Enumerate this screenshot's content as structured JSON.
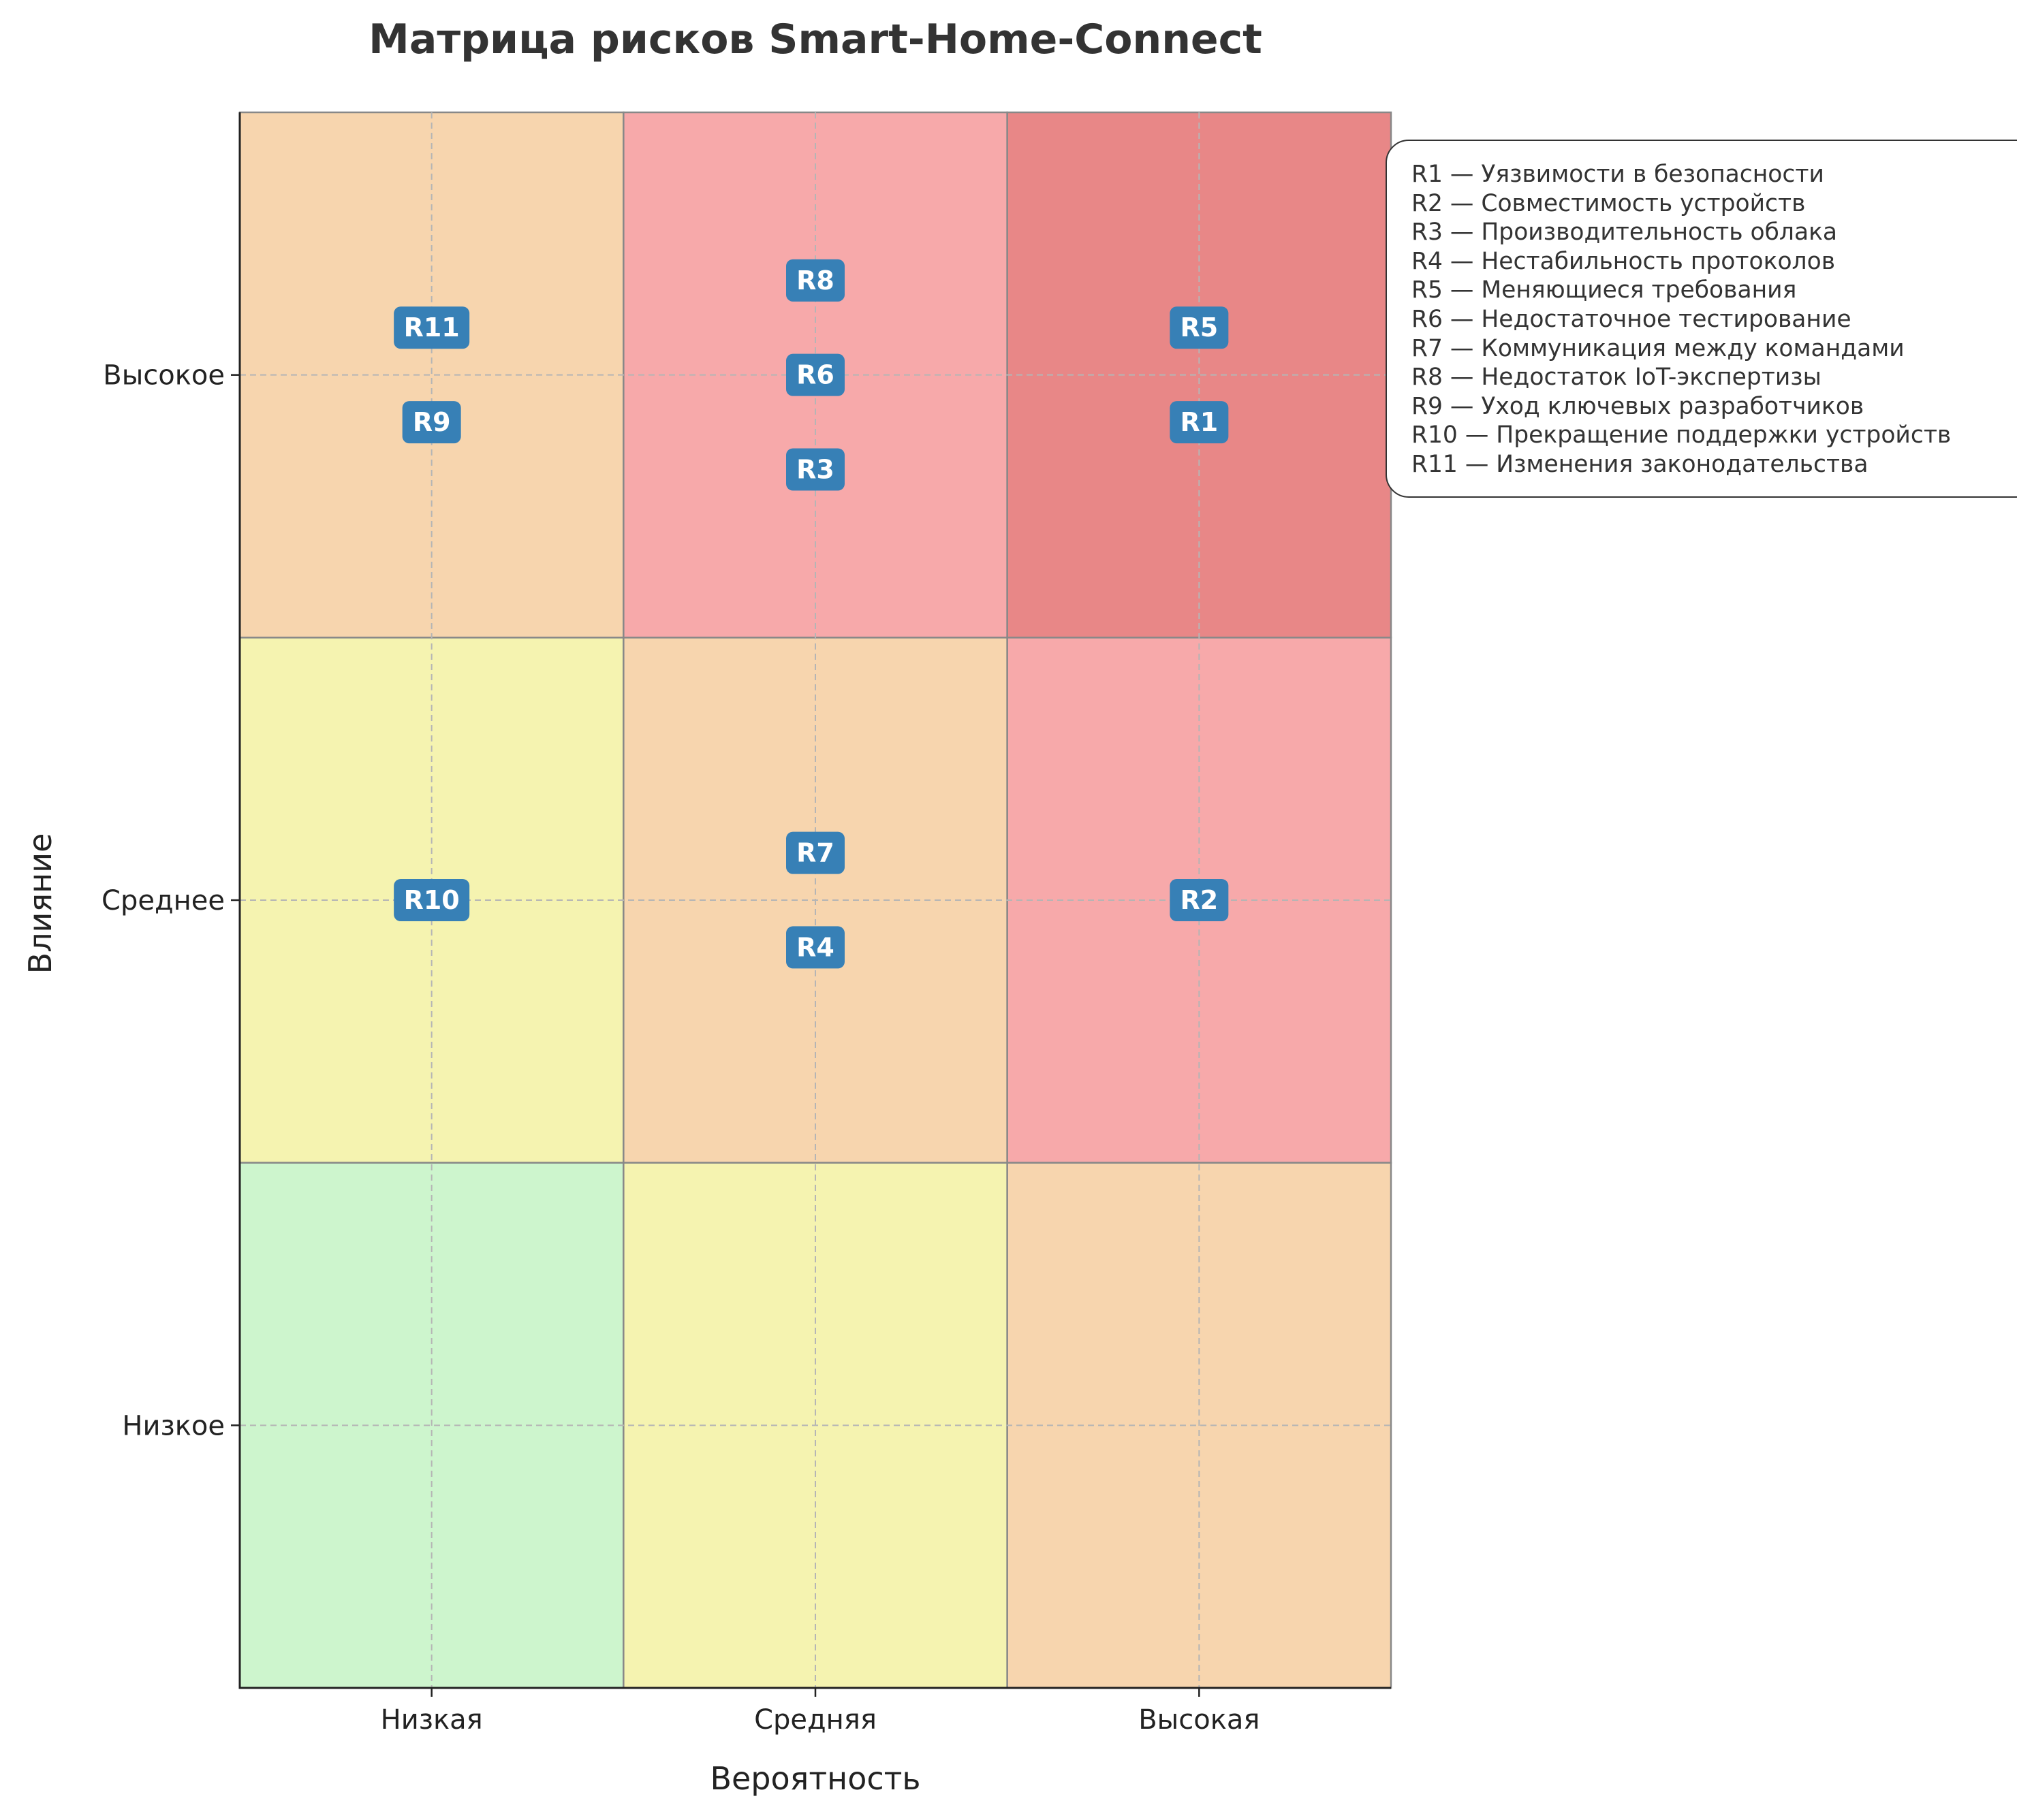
{
  "chart_data": {
    "type": "heatmap",
    "title": "Матрица рисков Smart-Home-Connect",
    "xlabel": "Вероятность",
    "ylabel": "Влияние",
    "x_categories": [
      "Низкая",
      "Средняя",
      "Высокая"
    ],
    "y_categories": [
      "Низкое",
      "Среднее",
      "Высокое"
    ],
    "grid": true,
    "legend_position": "top-right",
    "cell_colors": [
      [
        "#cdf5cd",
        "#f5f3b0",
        "#f7d5ae"
      ],
      [
        "#f5f3b0",
        "#f7d5ae",
        "#f7a9aa"
      ],
      [
        "#f7d5ae",
        "#f7a9aa",
        "#e88787"
      ]
    ],
    "badge_color": "#3780b6",
    "risks": [
      {
        "id": "R1",
        "name": "Уязвимости в безопасности",
        "likelihood": "Высокая",
        "impact": "Высокое",
        "offset": -0.09
      },
      {
        "id": "R2",
        "name": "Совместимость устройств",
        "likelihood": "Высокая",
        "impact": "Среднее",
        "offset": 0
      },
      {
        "id": "R3",
        "name": "Производительность облака",
        "likelihood": "Средняя",
        "impact": "Высокое",
        "offset": -0.18
      },
      {
        "id": "R4",
        "name": "Нестабильность протоколов",
        "likelihood": "Средняя",
        "impact": "Среднее",
        "offset": -0.09
      },
      {
        "id": "R5",
        "name": "Меняющиеся требования",
        "likelihood": "Высокая",
        "impact": "Высокое",
        "offset": 0.09
      },
      {
        "id": "R6",
        "name": "Недостаточное тестирование",
        "likelihood": "Средняя",
        "impact": "Высокое",
        "offset": 0
      },
      {
        "id": "R7",
        "name": "Коммуникация между командами",
        "likelihood": "Средняя",
        "impact": "Среднее",
        "offset": 0.09
      },
      {
        "id": "R8",
        "name": "Недостаток IoT-экспертизы",
        "likelihood": "Средняя",
        "impact": "Высокое",
        "offset": 0.18
      },
      {
        "id": "R9",
        "name": "Уход ключевых разработчиков",
        "likelihood": "Низкая",
        "impact": "Высокое",
        "offset": -0.09
      },
      {
        "id": "R10",
        "name": "Прекращение поддержки устройств",
        "likelihood": "Низкая",
        "impact": "Среднее",
        "offset": 0
      },
      {
        "id": "R11",
        "name": "Изменения законодательства",
        "likelihood": "Низкая",
        "impact": "Высокое",
        "offset": 0.09
      }
    ]
  },
  "legend": {
    "items": [
      "R1 — Уязвимости в безопасности",
      "R2 — Совместимость устройств",
      "R3 — Производительность облака",
      "R4 — Нестабильность протоколов",
      "R5 — Меняющиеся требования",
      "R6 — Недостаточное тестирование",
      "R7 — Коммуникация между командами",
      "R8 — Недостаток IoT-экспертизы",
      "R9 — Уход ключевых разработчиков",
      "R10 — Прекращение поддержки устройств",
      "R11 — Изменения законодательства"
    ]
  }
}
